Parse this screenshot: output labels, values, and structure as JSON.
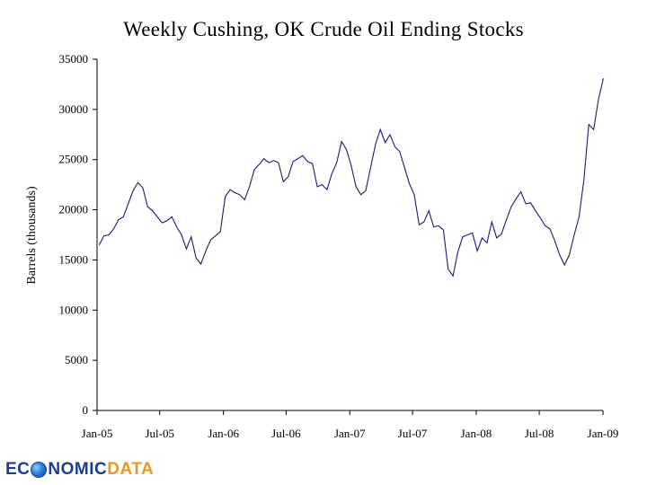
{
  "chart_data": {
    "type": "line",
    "title": "Weekly Cushing, OK Crude Oil Ending Stocks",
    "xlabel": "",
    "ylabel": "Barrels (thousands)",
    "ylim": [
      0,
      35000
    ],
    "yticks": [
      0,
      5000,
      10000,
      15000,
      20000,
      25000,
      30000,
      35000
    ],
    "xticks": [
      "Jan-05",
      "Jul-05",
      "Jan-06",
      "Jul-06",
      "Jan-07",
      "Jul-07",
      "Jan-08",
      "Jul-08",
      "Jan-09"
    ],
    "grid": false,
    "legend": "none",
    "line_color": "#1a1a7a",
    "series": [
      {
        "x": [
          "2005-01-07",
          "2005-01-21",
          "2005-02-04",
          "2005-02-18",
          "2005-03-04",
          "2005-03-18",
          "2005-04-01",
          "2005-04-15",
          "2005-04-29",
          "2005-05-13",
          "2005-05-27",
          "2005-06-10",
          "2005-06-24",
          "2005-07-08",
          "2005-07-22",
          "2005-08-05",
          "2005-08-19",
          "2005-09-02",
          "2005-09-16",
          "2005-09-30",
          "2005-10-14",
          "2005-10-28",
          "2005-11-11",
          "2005-11-25",
          "2005-12-09",
          "2005-12-23",
          "2006-01-06",
          "2006-01-20",
          "2006-02-03",
          "2006-02-17",
          "2006-03-03",
          "2006-03-17",
          "2006-03-31",
          "2006-04-14",
          "2006-04-28",
          "2006-05-12",
          "2006-05-26",
          "2006-06-09",
          "2006-06-23",
          "2006-07-07",
          "2006-07-21",
          "2006-08-04",
          "2006-08-18",
          "2006-09-01",
          "2006-09-15",
          "2006-09-29",
          "2006-10-13",
          "2006-10-27",
          "2006-11-10",
          "2006-11-24",
          "2006-12-08",
          "2006-12-22",
          "2007-01-05",
          "2007-01-19",
          "2007-02-02",
          "2007-02-16",
          "2007-03-02",
          "2007-03-16",
          "2007-03-30",
          "2007-04-13",
          "2007-04-27",
          "2007-05-11",
          "2007-05-25",
          "2007-06-08",
          "2007-06-22",
          "2007-07-06",
          "2007-07-20",
          "2007-08-03",
          "2007-08-17",
          "2007-08-31",
          "2007-09-14",
          "2007-09-28",
          "2007-10-12",
          "2007-10-26",
          "2007-11-09",
          "2007-11-23",
          "2007-12-07",
          "2007-12-21",
          "2008-01-04",
          "2008-01-18",
          "2008-02-01",
          "2008-02-15",
          "2008-02-29",
          "2008-03-14",
          "2008-03-28",
          "2008-04-11",
          "2008-04-25",
          "2008-05-09",
          "2008-05-23",
          "2008-06-06",
          "2008-06-20",
          "2008-07-04",
          "2008-07-18",
          "2008-08-01",
          "2008-08-15",
          "2008-08-29",
          "2008-09-12",
          "2008-09-26",
          "2008-10-10",
          "2008-10-24",
          "2008-11-07",
          "2008-11-21",
          "2008-12-05",
          "2008-12-19",
          "2009-01-02"
        ],
        "values": [
          16500,
          17400,
          17500,
          18100,
          19000,
          19300,
          20600,
          21900,
          22700,
          22200,
          20300,
          19900,
          19300,
          18700,
          18900,
          19300,
          18300,
          17500,
          16100,
          17300,
          15200,
          14600,
          15900,
          17000,
          17400,
          17800,
          21300,
          22000,
          21700,
          21500,
          21000,
          22300,
          24000,
          24500,
          25100,
          24700,
          24900,
          24700,
          22800,
          23300,
          24800,
          25100,
          25400,
          24800,
          24600,
          22300,
          22500,
          22000,
          23600,
          24700,
          26800,
          26000,
          24400,
          22300,
          21500,
          21900,
          24200,
          26500,
          28000,
          26700,
          27500,
          26300,
          25800,
          24200,
          22600,
          21500,
          18500,
          18800,
          19900,
          18300,
          18400,
          18000,
          14100,
          13400,
          15800,
          17300,
          17500,
          17700,
          15900,
          17200,
          16700,
          18800,
          17200,
          17600,
          19000,
          20300,
          21100,
          21800,
          20600,
          20700,
          19900,
          19200,
          18400,
          18100,
          16900,
          15500,
          14500,
          15500,
          17500,
          19300,
          23000,
          28500,
          28000,
          31000,
          33100
        ]
      }
    ]
  },
  "logo": {
    "part1": "EC",
    "part2": "NOMIC",
    "part3": "DATA"
  }
}
